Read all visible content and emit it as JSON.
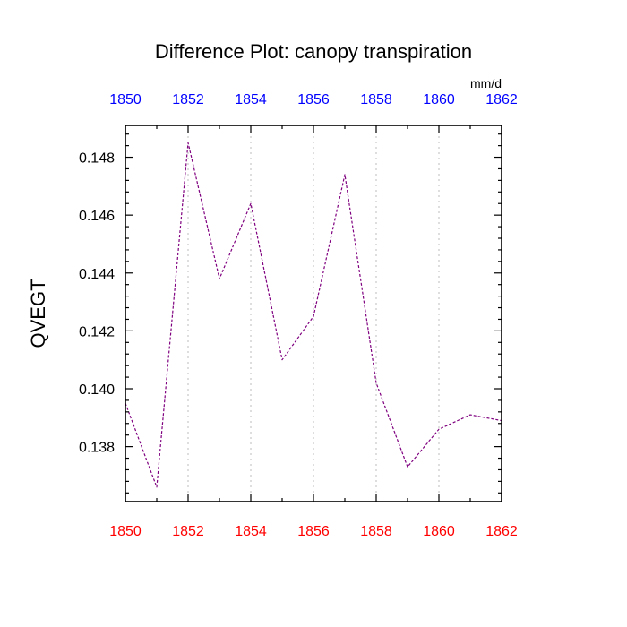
{
  "chart_data": {
    "type": "line",
    "title": "Difference Plot: canopy transpiration",
    "units": "mm/d",
    "ylabel": "QVEGT",
    "xlabel": "",
    "xlim": [
      1850,
      1862
    ],
    "ylim": [
      0.1361,
      0.1491
    ],
    "x_ticks_major": [
      1850,
      1852,
      1854,
      1856,
      1858,
      1860,
      1862
    ],
    "x_tick_labels": [
      "1850",
      "1852",
      "1854",
      "1856",
      "1858",
      "1860",
      "1862"
    ],
    "y_ticks_major": [
      0.138,
      0.14,
      0.142,
      0.144,
      0.146,
      0.148
    ],
    "y_tick_labels": [
      "0.138",
      "0.140",
      "0.142",
      "0.144",
      "0.146",
      "0.148"
    ],
    "x_grid": "dotted vertical at major ticks",
    "top_axis_color": "#0000ff",
    "bottom_axis_color": "#ff0000",
    "series": [
      {
        "color": "#7f007f",
        "dash": "dashed",
        "x": [
          1850,
          1851,
          1852,
          1853,
          1854,
          1855,
          1856,
          1857,
          1858,
          1859,
          1860,
          1861,
          1862
        ],
        "values": [
          0.1395,
          0.1366,
          0.1485,
          0.1438,
          0.1464,
          0.141,
          0.1425,
          0.1474,
          0.1402,
          0.1373,
          0.1386,
          0.1391,
          0.1389
        ]
      }
    ]
  }
}
